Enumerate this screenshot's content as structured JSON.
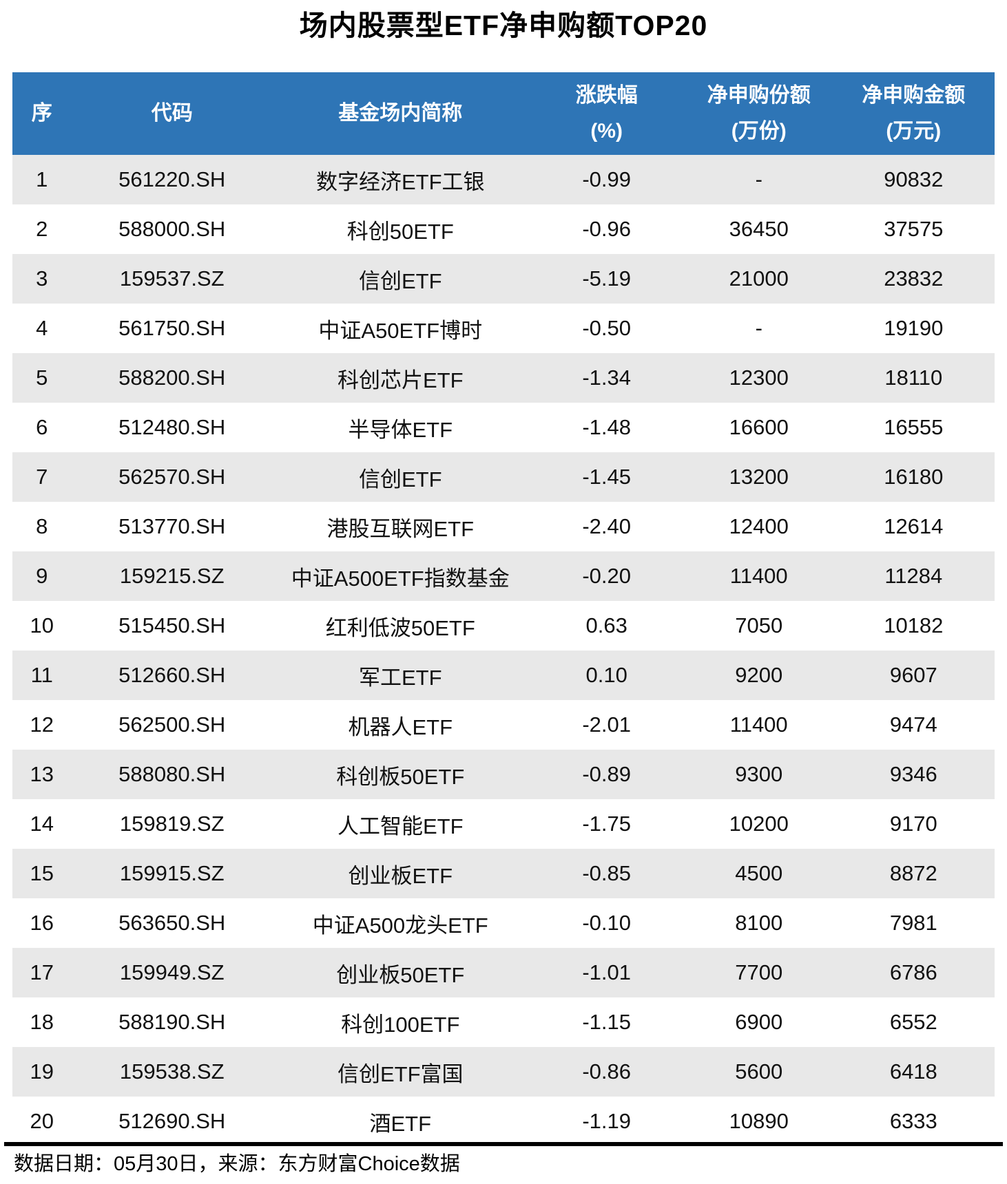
{
  "title": "场内股票型ETF净申购额TOP20",
  "colors": {
    "header_bg": "#2E75B6",
    "header_text": "#FFFFFF",
    "stripe_bg": "#E8E8E8",
    "divider": "#000000",
    "body_text": "#111111"
  },
  "table": {
    "columns": [
      {
        "label": "序",
        "sub": ""
      },
      {
        "label": "代码",
        "sub": ""
      },
      {
        "label": "基金场内简称",
        "sub": ""
      },
      {
        "label": "涨跌幅",
        "sub": "(%)"
      },
      {
        "label": "净申购份额",
        "sub": "(万份)"
      },
      {
        "label": "净申购金额",
        "sub": "(万元)"
      }
    ]
  },
  "footer": {
    "text": "数据日期：05月30日，来源：东方财富Choice数据"
  },
  "chart_data": {
    "type": "table",
    "title": "场内股票型ETF净申购额TOP20",
    "columns": [
      "序",
      "代码",
      "基金场内简称",
      "涨跌幅(%)",
      "净申购份额(万份)",
      "净申购金额(万元)"
    ],
    "rows": [
      [
        "1",
        "561220.SH",
        "数字经济ETF工银",
        "-0.99",
        "-",
        "90832"
      ],
      [
        "2",
        "588000.SH",
        "科创50ETF",
        "-0.96",
        "36450",
        "37575"
      ],
      [
        "3",
        "159537.SZ",
        "信创ETF",
        "-5.19",
        "21000",
        "23832"
      ],
      [
        "4",
        "561750.SH",
        "中证A50ETF博时",
        "-0.50",
        "-",
        "19190"
      ],
      [
        "5",
        "588200.SH",
        "科创芯片ETF",
        "-1.34",
        "12300",
        "18110"
      ],
      [
        "6",
        "512480.SH",
        "半导体ETF",
        "-1.48",
        "16600",
        "16555"
      ],
      [
        "7",
        "562570.SH",
        "信创ETF",
        "-1.45",
        "13200",
        "16180"
      ],
      [
        "8",
        "513770.SH",
        "港股互联网ETF",
        "-2.40",
        "12400",
        "12614"
      ],
      [
        "9",
        "159215.SZ",
        "中证A500ETF指数基金",
        "-0.20",
        "11400",
        "11284"
      ],
      [
        "10",
        "515450.SH",
        "红利低波50ETF",
        "0.63",
        "7050",
        "10182"
      ],
      [
        "11",
        "512660.SH",
        "军工ETF",
        "0.10",
        "9200",
        "9607"
      ],
      [
        "12",
        "562500.SH",
        "机器人ETF",
        "-2.01",
        "11400",
        "9474"
      ],
      [
        "13",
        "588080.SH",
        "科创板50ETF",
        "-0.89",
        "9300",
        "9346"
      ],
      [
        "14",
        "159819.SZ",
        "人工智能ETF",
        "-1.75",
        "10200",
        "9170"
      ],
      [
        "15",
        "159915.SZ",
        "创业板ETF",
        "-0.85",
        "4500",
        "8872"
      ],
      [
        "16",
        "563650.SH",
        "中证A500龙头ETF",
        "-0.10",
        "8100",
        "7981"
      ],
      [
        "17",
        "159949.SZ",
        "创业板50ETF",
        "-1.01",
        "7700",
        "6786"
      ],
      [
        "18",
        "588190.SH",
        "科创100ETF",
        "-1.15",
        "6900",
        "6552"
      ],
      [
        "19",
        "159538.SZ",
        "信创ETF富国",
        "-0.86",
        "5600",
        "6418"
      ],
      [
        "20",
        "512690.SH",
        "酒ETF",
        "-1.19",
        "10890",
        "6333"
      ]
    ]
  }
}
